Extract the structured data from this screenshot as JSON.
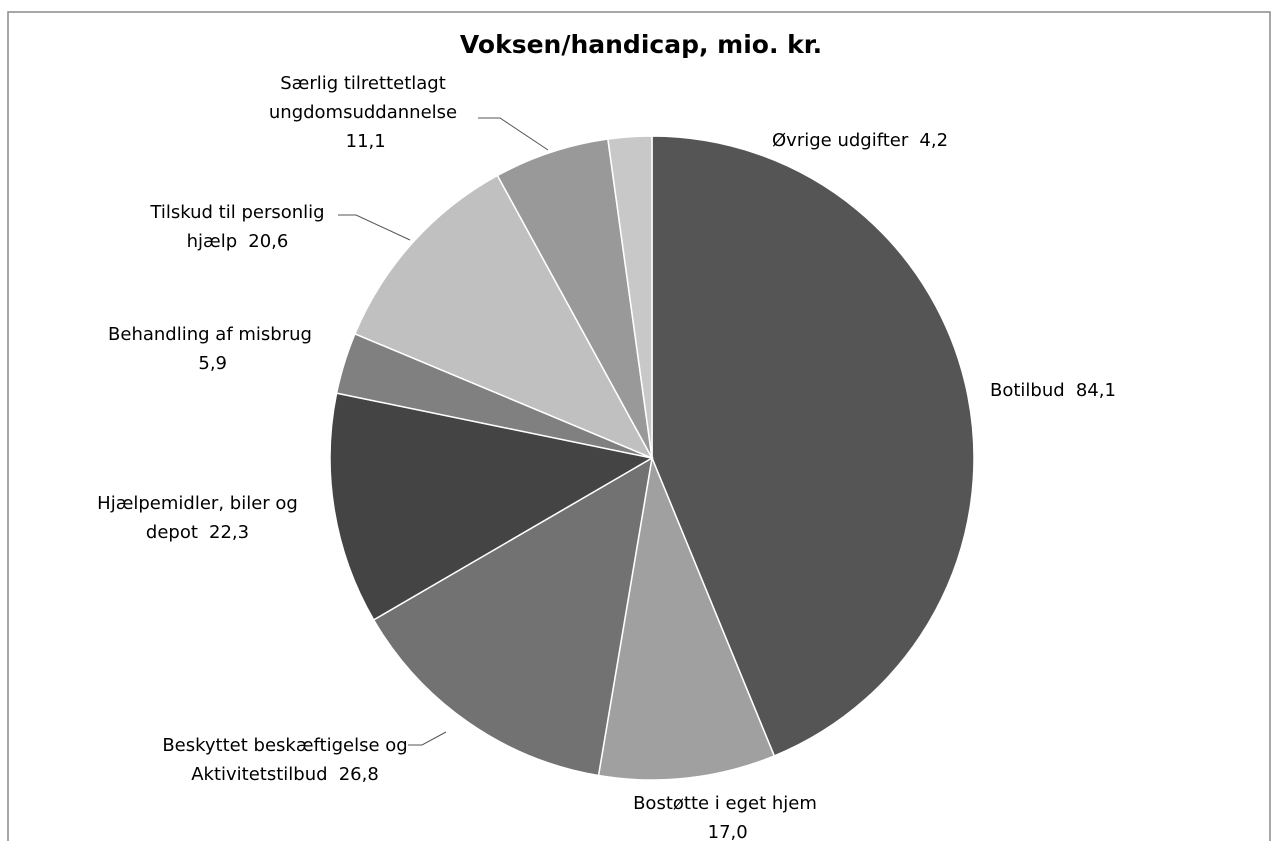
{
  "chart_data": {
    "type": "pie",
    "title": "Voksen/handicap, mio. kr.",
    "categories": [
      "Botilbud",
      "Bostøtte i eget hjem",
      "Beskyttet beskæftigelse og Aktivitetstilbud",
      "Hjælpemidler, biler og depot",
      "Behandling af misbrug",
      "Tilskud til personlig hjælp",
      "Særlig tilrettetlagt ungdomsuddannelse",
      "Øvrige udgifter"
    ],
    "values": [
      84.1,
      17.0,
      26.8,
      22.3,
      5.9,
      20.6,
      11.1,
      4.2
    ],
    "value_labels": [
      "84,1",
      "17,0",
      "26,8",
      "22,3",
      "5,9",
      "20,6",
      "11,1",
      "4,2"
    ],
    "colors": [
      "#555555",
      "#a0a0a0",
      "#727272",
      "#444444",
      "#808080",
      "#c0c0c0",
      "#999999",
      "#c8c8c8"
    ]
  }
}
